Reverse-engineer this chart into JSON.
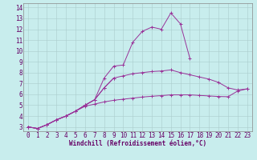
{
  "xlabel": "Windchill (Refroidissement éolien,°C)",
  "bg_color": "#c8eded",
  "line_color": "#993399",
  "grid_color": "#aacccc",
  "xlim": [
    -0.5,
    23.5
  ],
  "ylim": [
    2.6,
    14.4
  ],
  "xticks": [
    0,
    1,
    2,
    3,
    4,
    5,
    6,
    7,
    8,
    9,
    10,
    11,
    12,
    13,
    14,
    15,
    16,
    17,
    18,
    19,
    20,
    21,
    22,
    23
  ],
  "yticks": [
    3,
    4,
    5,
    6,
    7,
    8,
    9,
    10,
    11,
    12,
    13,
    14
  ],
  "series": [
    [
      3.0,
      2.85,
      3.2,
      3.65,
      4.0,
      4.45,
      5.0,
      5.5,
      7.5,
      8.6,
      8.7,
      10.8,
      11.8,
      12.2,
      12.0,
      13.5,
      12.5,
      9.3,
      null,
      null,
      null,
      null,
      null,
      null
    ],
    [
      3.0,
      2.85,
      3.2,
      3.65,
      4.0,
      4.45,
      5.0,
      5.5,
      6.6,
      7.5,
      null,
      null,
      null,
      null,
      null,
      null,
      null,
      null,
      null,
      null,
      null,
      null,
      null,
      null
    ],
    [
      3.0,
      2.85,
      3.2,
      3.65,
      4.0,
      4.45,
      5.0,
      5.5,
      6.6,
      7.5,
      7.7,
      7.9,
      8.0,
      8.1,
      8.15,
      8.25,
      8.0,
      7.8,
      7.6,
      7.4,
      7.1,
      6.6,
      6.4,
      6.5
    ],
    [
      3.0,
      2.85,
      3.2,
      3.65,
      4.0,
      4.45,
      4.9,
      5.1,
      5.3,
      5.45,
      5.55,
      5.65,
      5.75,
      5.82,
      5.88,
      5.95,
      5.95,
      5.95,
      5.9,
      5.85,
      5.8,
      5.78,
      6.3,
      6.5
    ]
  ],
  "tick_fontsize": 5.5,
  "xlabel_fontsize": 5.5
}
